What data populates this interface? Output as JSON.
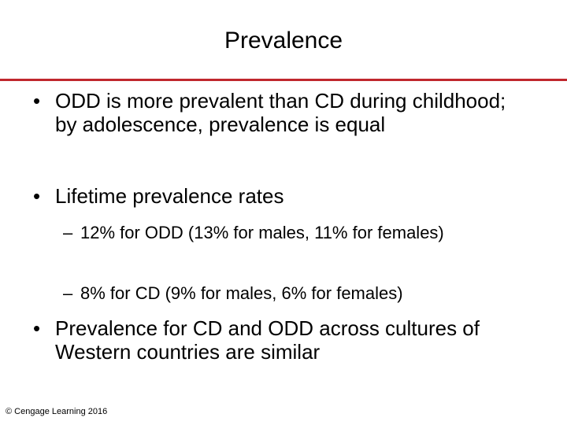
{
  "slide": {
    "title": "Prevalence",
    "accent_color": "#c0272d",
    "bullets": [
      {
        "marker": "•",
        "text": "ODD is more prevalent than CD during childhood; by adolescence, prevalence is equal"
      },
      {
        "marker": "•",
        "text": "Lifetime prevalence rates",
        "subitems": [
          {
            "marker": "–",
            "text": "12% for ODD (13% for males, 11% for females)"
          },
          {
            "marker": "–",
            "text": "8% for CD (9% for males, 6% for females)"
          }
        ]
      },
      {
        "marker": "•",
        "text": "Prevalence for CD and ODD across cultures of Western countries are similar"
      }
    ],
    "footer": "© Cengage Learning 2016"
  }
}
